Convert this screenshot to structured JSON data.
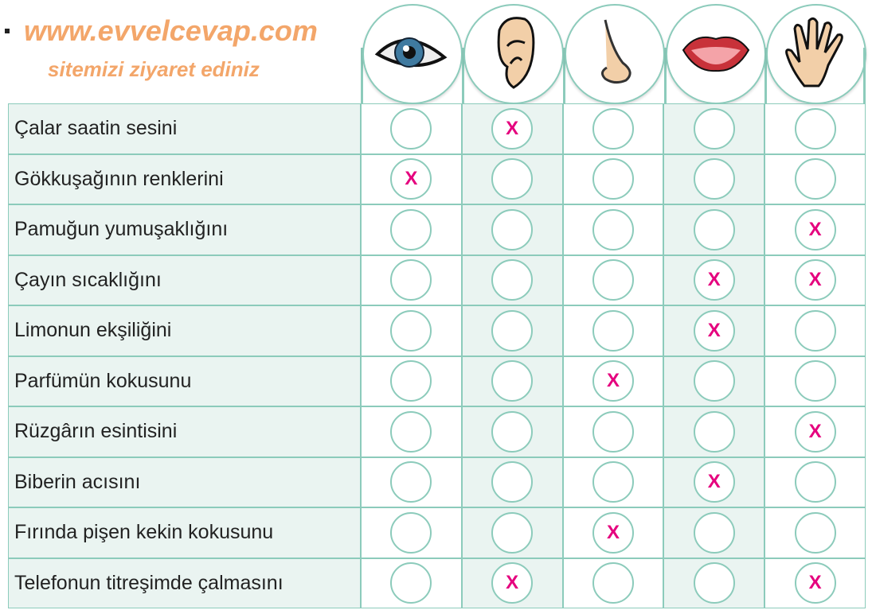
{
  "senses": [
    {
      "icon": "eye-icon",
      "name": "eye"
    },
    {
      "icon": "ear-icon",
      "name": "ear"
    },
    {
      "icon": "nose-icon",
      "name": "nose"
    },
    {
      "icon": "mouth-icon",
      "name": "mouth"
    },
    {
      "icon": "hand-icon",
      "name": "hand"
    }
  ],
  "mark": "X",
  "colors": {
    "line": "#8ccbbb",
    "shade": "#eaf4f1",
    "mark": "#e5007e",
    "watermark": "#f3a66a"
  },
  "rows": [
    {
      "label": "Çalar saatin sesini",
      "marks": [
        false,
        true,
        false,
        false,
        false
      ]
    },
    {
      "label": "Gökkuşağının renklerini",
      "marks": [
        true,
        false,
        false,
        false,
        false
      ]
    },
    {
      "label": "Pamuğun yumuşaklığını",
      "marks": [
        false,
        false,
        false,
        false,
        true
      ]
    },
    {
      "label": "Çayın sıcaklığını",
      "marks": [
        false,
        false,
        false,
        true,
        true
      ]
    },
    {
      "label": "Limonun ekşiliğini",
      "marks": [
        false,
        false,
        false,
        true,
        false
      ]
    },
    {
      "label": "Parfümün kokusunu",
      "marks": [
        false,
        false,
        true,
        false,
        false
      ]
    },
    {
      "label": "Rüzgârın esintisini",
      "marks": [
        false,
        false,
        false,
        false,
        true
      ]
    },
    {
      "label": "Biberin acısını",
      "marks": [
        false,
        false,
        false,
        true,
        false
      ]
    },
    {
      "label": "Fırında pişen kekin kokusunu",
      "marks": [
        false,
        false,
        true,
        false,
        false
      ]
    },
    {
      "label": "Telefonun titreşimde çalmasını",
      "marks": [
        false,
        true,
        false,
        false,
        true
      ]
    }
  ],
  "watermark": {
    "main": "www.evvelcevap.com",
    "sub": "sitemizi ziyaret ediniz"
  }
}
